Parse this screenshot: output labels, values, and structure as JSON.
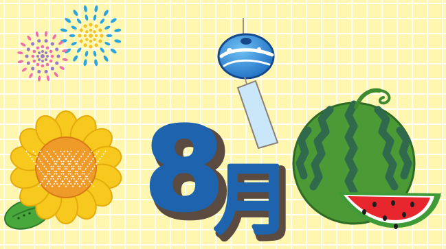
{
  "month": {
    "number": "8",
    "kanji": "月"
  },
  "colors": {
    "background": "#fff7b0",
    "grid": "#ffffff",
    "month_blue": "#1e63ad",
    "month_shadow": "#5a4a40",
    "sunflower_petal": "#f7c81e",
    "sunflower_center": "#ef9b2a",
    "leaf_green": "#49a83c",
    "watermelon_green": "#4b9a35",
    "watermelon_stripe": "#2f6a4c",
    "watermelon_flesh": "#e8262d",
    "firework_blue": "#2ea4dd",
    "firework_yellow": "#f2c22c",
    "firework_pink": "#ee6fa9",
    "firework_purple": "#9a7cc4",
    "wind_chime_blue": "#2c7fd0",
    "wind_chime_strip": "#c9e7f8"
  },
  "decorations": {
    "fireworks_icon": "fireworks-icon",
    "wind_chime_icon": "wind-chime-icon",
    "sunflower_icon": "sunflower-icon",
    "watermelon_icon": "watermelon-icon",
    "watermelon_slice_icon": "watermelon-slice-icon"
  }
}
